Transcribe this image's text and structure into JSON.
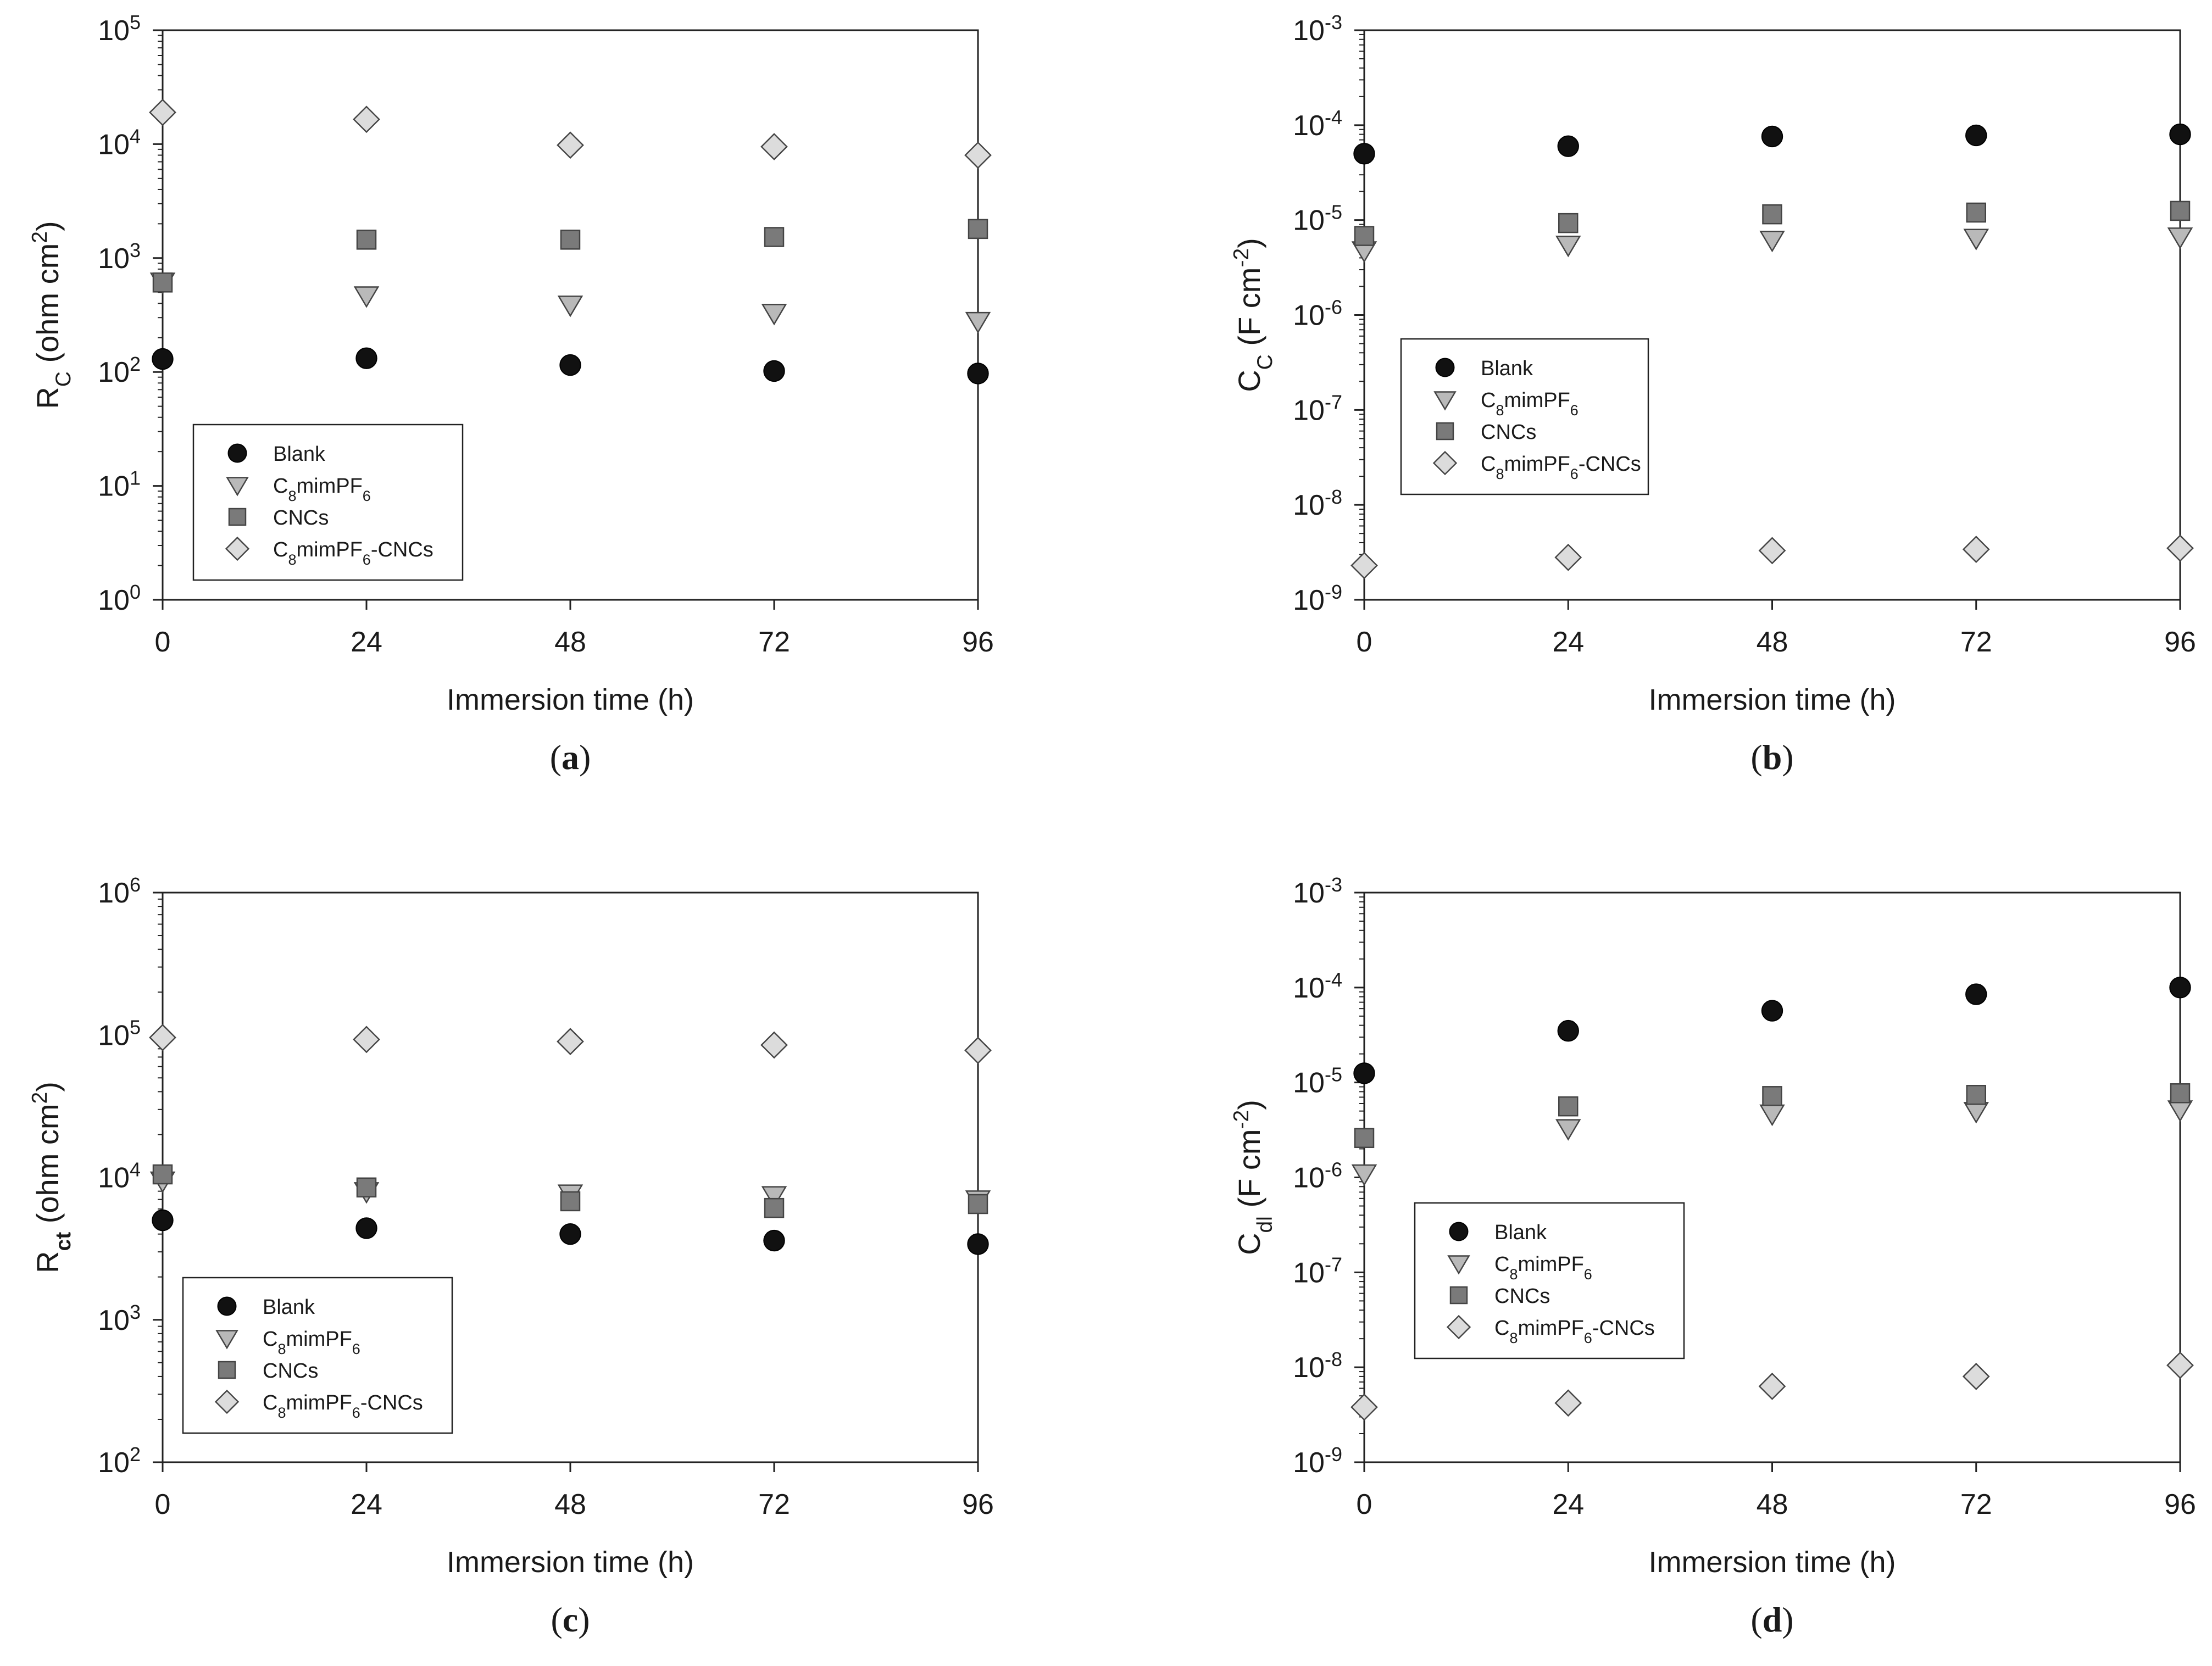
{
  "colors": {
    "blank": "#111111",
    "c8mimpf6": "#b9b9b9",
    "cncs": "#7a7a7a",
    "combo": "#dcdcdc",
    "stroke": "#444444",
    "axis": "#222222"
  },
  "legend_entries": [
    {
      "key": "blank",
      "shape": "circle",
      "label": "Blank"
    },
    {
      "key": "c8mimpf6",
      "shape": "triangle-down",
      "label": "C8mimPF6",
      "rich": [
        [
          "C",
          ""
        ],
        [
          "8",
          "sub"
        ],
        [
          "mimPF",
          ""
        ],
        [
          "6",
          "sub"
        ]
      ]
    },
    {
      "key": "cncs",
      "shape": "square",
      "label": "CNCs"
    },
    {
      "key": "combo",
      "shape": "diamond",
      "label": "C8mimPF6-CNCs",
      "rich": [
        [
          "C",
          ""
        ],
        [
          "8",
          "sub"
        ],
        [
          "mimPF",
          ""
        ],
        [
          "6",
          "sub"
        ],
        [
          "-CNCs",
          ""
        ]
      ]
    }
  ],
  "chart_data": [
    {
      "panel": "(a)",
      "panel_rich": [
        [
          "(",
          ""
        ],
        [
          "a",
          "bold"
        ],
        [
          ")",
          ""
        ]
      ],
      "type": "scatter",
      "ylog": true,
      "xlabel": "Immersion time (h)",
      "ylabel": "RC (ohm cm2)",
      "ylabel_rich": [
        [
          "R",
          ""
        ],
        [
          "C",
          "sub"
        ],
        [
          " (ohm cm",
          ""
        ],
        [
          "2",
          "sup"
        ],
        [
          ")",
          ""
        ]
      ],
      "xticks": [
        0,
        24,
        48,
        72,
        96
      ],
      "ylim_exp": [
        0,
        5
      ],
      "ytick_exps": [
        0,
        1,
        2,
        3,
        4,
        5
      ],
      "legend_position": "lower-left",
      "series": [
        {
          "key": "blank",
          "name": "Blank",
          "x": [
            0,
            24,
            48,
            72,
            96
          ],
          "y": [
            130,
            132,
            115,
            102,
            97
          ]
        },
        {
          "key": "c8mimpf6",
          "name": "C8mimPF6",
          "x": [
            0,
            24,
            48,
            72,
            96
          ],
          "y": [
            620,
            470,
            390,
            330,
            280
          ]
        },
        {
          "key": "cncs",
          "name": "CNCs",
          "x": [
            0,
            24,
            48,
            72,
            96
          ],
          "y": [
            610,
            1450,
            1450,
            1530,
            1800
          ]
        },
        {
          "key": "combo",
          "name": "C8mimPF6-CNCs",
          "x": [
            0,
            24,
            48,
            72,
            96
          ],
          "y": [
            19000,
            16500,
            9800,
            9500,
            8000
          ]
        }
      ]
    },
    {
      "panel": "(b)",
      "panel_rich": [
        [
          "(",
          ""
        ],
        [
          "b",
          "bold"
        ],
        [
          ")",
          ""
        ]
      ],
      "type": "scatter",
      "ylog": true,
      "xlabel": "Immersion time (h)",
      "ylabel": "CC (F cm-2)",
      "ylabel_rich": [
        [
          "C",
          ""
        ],
        [
          "C",
          "sub"
        ],
        [
          " (F cm",
          ""
        ],
        [
          "-2",
          "sup"
        ],
        [
          ")",
          ""
        ]
      ],
      "xticks": [
        0,
        24,
        48,
        72,
        96
      ],
      "ylim_exp": [
        -9,
        -3
      ],
      "ytick_exps": [
        -9,
        -8,
        -7,
        -6,
        -5,
        -4,
        -3
      ],
      "legend_position": "center-left",
      "series": [
        {
          "key": "blank",
          "name": "Blank",
          "x": [
            0,
            24,
            48,
            72,
            96
          ],
          "y": [
            5e-05,
            6e-05,
            7.6e-05,
            7.8e-05,
            8e-05
          ]
        },
        {
          "key": "c8mimpf6",
          "name": "C8mimPF6",
          "x": [
            0,
            24,
            48,
            72,
            96
          ],
          "y": [
            4.8e-06,
            5.5e-06,
            6.2e-06,
            6.5e-06,
            6.7e-06
          ]
        },
        {
          "key": "cncs",
          "name": "CNCs",
          "x": [
            0,
            24,
            48,
            72,
            96
          ],
          "y": [
            6.8e-06,
            9.3e-06,
            1.15e-05,
            1.2e-05,
            1.25e-05
          ]
        },
        {
          "key": "combo",
          "name": "C8mimPF6-CNCs",
          "x": [
            0,
            24,
            48,
            72,
            96
          ],
          "y": [
            2.3e-09,
            2.8e-09,
            3.3e-09,
            3.4e-09,
            3.5e-09
          ]
        }
      ]
    },
    {
      "panel": "(c)",
      "panel_rich": [
        [
          "(",
          ""
        ],
        [
          "c",
          "bold"
        ],
        [
          ")",
          ""
        ]
      ],
      "type": "scatter",
      "ylog": true,
      "xlabel": "Immersion time (h)",
      "ylabel": "Rct (ohm cm2)",
      "ylabel_rich": [
        [
          "R",
          ""
        ],
        [
          "ct",
          "subbold"
        ],
        [
          " (ohm cm",
          ""
        ],
        [
          "2",
          "sup"
        ],
        [
          ")",
          ""
        ]
      ],
      "xticks": [
        0,
        24,
        48,
        72,
        96
      ],
      "ylim_exp": [
        2,
        6
      ],
      "ytick_exps": [
        2,
        3,
        4,
        5,
        6
      ],
      "legend_position": "lower-left",
      "series": [
        {
          "key": "blank",
          "name": "Blank",
          "x": [
            0,
            24,
            48,
            72,
            96
          ],
          "y": [
            5000,
            4400,
            4000,
            3600,
            3400
          ]
        },
        {
          "key": "c8mimpf6",
          "name": "C8mimPF6",
          "x": [
            0,
            24,
            48,
            72,
            96
          ],
          "y": [
            9500,
            8000,
            7700,
            7500,
            7000
          ]
        },
        {
          "key": "cncs",
          "name": "CNCs",
          "x": [
            0,
            24,
            48,
            72,
            96
          ],
          "y": [
            10500,
            8500,
            6800,
            6100,
            6500
          ]
        },
        {
          "key": "combo",
          "name": "C8mimPF6-CNCs",
          "x": [
            0,
            24,
            48,
            72,
            96
          ],
          "y": [
            96000,
            93000,
            90000,
            85000,
            78000
          ]
        }
      ]
    },
    {
      "panel": "(d)",
      "panel_rich": [
        [
          "(",
          ""
        ],
        [
          "d",
          "bold"
        ],
        [
          ")",
          ""
        ]
      ],
      "type": "scatter",
      "ylog": true,
      "xlabel": "Immersion time (h)",
      "ylabel": "Cdl (F cm-2)",
      "ylabel_rich": [
        [
          "C",
          ""
        ],
        [
          "dl",
          "sub"
        ],
        [
          " (F cm",
          ""
        ],
        [
          "-2",
          "sup"
        ],
        [
          ")",
          ""
        ]
      ],
      "xticks": [
        0,
        24,
        48,
        72,
        96
      ],
      "ylim_exp": [
        -9,
        -3
      ],
      "ytick_exps": [
        -9,
        -8,
        -7,
        -6,
        -5,
        -4,
        -3
      ],
      "legend_position": "center-left",
      "series": [
        {
          "key": "blank",
          "name": "Blank",
          "x": [
            0,
            24,
            48,
            72,
            96
          ],
          "y": [
            1.25e-05,
            3.5e-05,
            5.7e-05,
            8.5e-05,
            0.0001
          ]
        },
        {
          "key": "c8mimpf6",
          "name": "C8mimPF6",
          "x": [
            0,
            24,
            48,
            72,
            96
          ],
          "y": [
            1.1e-06,
            3.3e-06,
            4.7e-06,
            5e-06,
            5.2e-06
          ]
        },
        {
          "key": "cncs",
          "name": "CNCs",
          "x": [
            0,
            24,
            48,
            72,
            96
          ],
          "y": [
            2.6e-06,
            5.6e-06,
            7.2e-06,
            7.4e-06,
            7.7e-06
          ]
        },
        {
          "key": "combo",
          "name": "C8mimPF6-CNCs",
          "x": [
            0,
            24,
            48,
            72,
            96
          ],
          "y": [
            3.8e-09,
            4.2e-09,
            6.3e-09,
            8e-09,
            1.05e-08
          ]
        }
      ]
    }
  ]
}
